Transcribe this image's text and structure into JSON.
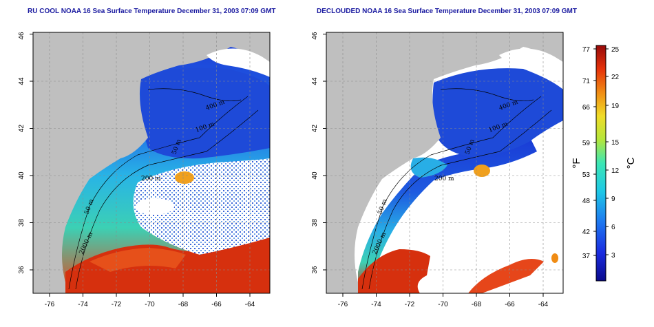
{
  "maps": [
    {
      "id": "left",
      "title": "RU COOL NOAA 16 Sea Surface Temperature December 31, 2003 07:09 GMT",
      "contour_labels": [
        "400 m",
        "100 m",
        "50 m",
        "200 m",
        "50 m",
        "2000 m"
      ]
    },
    {
      "id": "right",
      "title": "DECLOUDED NOAA 16 Sea Surface Temperature December 31, 2003 07:09 GMT",
      "contour_labels": [
        "400 m",
        "100 m",
        "50 m",
        "200 m",
        "50 m",
        "2000 m"
      ]
    }
  ],
  "axes": {
    "lon_ticks": [
      "-76",
      "-74",
      "-72",
      "-70",
      "-68",
      "-66",
      "-64"
    ],
    "lat_ticks": [
      "36",
      "38",
      "40",
      "42",
      "44",
      "46"
    ]
  },
  "colorbar": {
    "f_ticks": [
      "77",
      "71",
      "66",
      "59",
      "53",
      "48",
      "42",
      "37"
    ],
    "c_ticks": [
      "25",
      "22",
      "19",
      "15",
      "12",
      "9",
      "6",
      "3"
    ],
    "f_label": "°F",
    "c_label": "°C"
  },
  "colors": {
    "land": "#bfbfbf",
    "cloud": "#ffffff",
    "title": "#1a1aa0",
    "sst_cold": "#1a3cd6",
    "sst_warm": "#d62a10"
  }
}
